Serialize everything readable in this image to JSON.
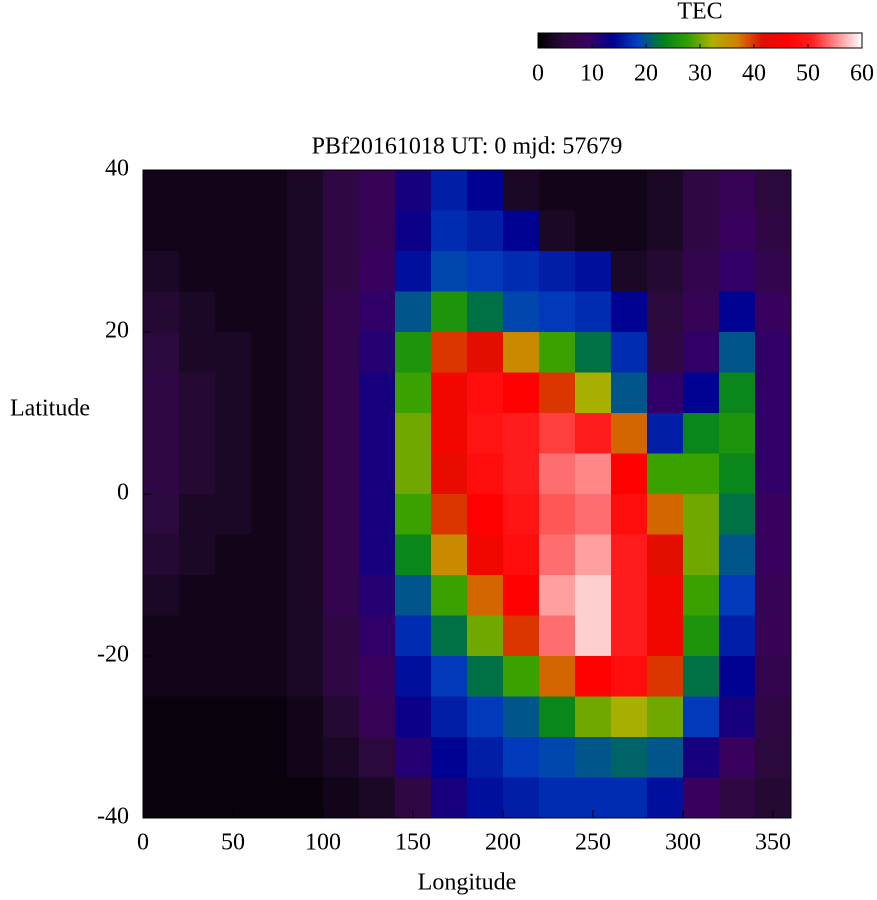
{
  "chart_data": {
    "type": "heatmap",
    "title": "PBf20161018  UT: 0  mjd: 57679",
    "xlabel": "Longitude",
    "ylabel": "Latitude",
    "x": [
      10,
      30,
      50,
      70,
      90,
      110,
      130,
      150,
      170,
      190,
      210,
      230,
      250,
      270,
      290,
      310,
      330,
      350
    ],
    "y": [
      37.5,
      32.5,
      27.5,
      22.5,
      17.5,
      12.5,
      7.5,
      2.5,
      -2.5,
      -7.5,
      -12.5,
      -17.5,
      -22.5,
      -27.5,
      -32.5,
      -37.5
    ],
    "values": [
      [
        2,
        2,
        2,
        2,
        3,
        6,
        8,
        12,
        16,
        14,
        3,
        2,
        2,
        2,
        3,
        6,
        8,
        5
      ],
      [
        2,
        2,
        2,
        2,
        3,
        6,
        8,
        13,
        17,
        16,
        14,
        3,
        2,
        2,
        3,
        6,
        9,
        6
      ],
      [
        3,
        2,
        2,
        2,
        3,
        6,
        9,
        15,
        19,
        18,
        17,
        16,
        15,
        3,
        4,
        7,
        10,
        7
      ],
      [
        4,
        3,
        2,
        2,
        3,
        7,
        10,
        20,
        26,
        22,
        19,
        18,
        17,
        14,
        5,
        8,
        14,
        9
      ],
      [
        5,
        3,
        3,
        2,
        3,
        7,
        11,
        26,
        40,
        42,
        36,
        28,
        22,
        17,
        6,
        10,
        20,
        10
      ],
      [
        6,
        4,
        3,
        2,
        3,
        7,
        12,
        28,
        44,
        48,
        46,
        40,
        32,
        20,
        10,
        14,
        24,
        10
      ],
      [
        6,
        4,
        3,
        2,
        3,
        7,
        12,
        30,
        44,
        49,
        50,
        52,
        50,
        38,
        16,
        24,
        26,
        10
      ],
      [
        6,
        4,
        3,
        2,
        3,
        7,
        12,
        30,
        43,
        48,
        50,
        54,
        55,
        46,
        28,
        28,
        24,
        10
      ],
      [
        5,
        3,
        3,
        2,
        3,
        7,
        12,
        28,
        40,
        46,
        49,
        53,
        54,
        48,
        38,
        30,
        22,
        9
      ],
      [
        4,
        3,
        2,
        2,
        3,
        7,
        12,
        24,
        36,
        44,
        48,
        54,
        56,
        50,
        42,
        30,
        20,
        9
      ],
      [
        3,
        2,
        2,
        2,
        3,
        7,
        11,
        20,
        28,
        38,
        46,
        56,
        58,
        50,
        44,
        28,
        18,
        8
      ],
      [
        2,
        2,
        2,
        2,
        3,
        6,
        10,
        17,
        22,
        30,
        40,
        54,
        58,
        50,
        44,
        26,
        16,
        8
      ],
      [
        2,
        2,
        2,
        2,
        3,
        6,
        9,
        15,
        18,
        22,
        28,
        38,
        46,
        48,
        40,
        22,
        14,
        7
      ],
      [
        1,
        1,
        1,
        1,
        2,
        4,
        8,
        13,
        16,
        18,
        20,
        24,
        30,
        32,
        30,
        18,
        12,
        6
      ],
      [
        1,
        1,
        1,
        1,
        2,
        3,
        5,
        11,
        14,
        16,
        18,
        19,
        20,
        21,
        20,
        12,
        9,
        5
      ],
      [
        1,
        1,
        1,
        1,
        1,
        2,
        3,
        6,
        12,
        15,
        16,
        17,
        17,
        17,
        15,
        9,
        6,
        4
      ]
    ],
    "xlim": [
      0,
      360
    ],
    "xticks": [
      0,
      50,
      100,
      150,
      200,
      250,
      300,
      350
    ],
    "ylim": [
      -40,
      40
    ],
    "yticks": [
      -40,
      -20,
      0,
      20,
      40
    ],
    "colorbar": {
      "label": "TEC",
      "lim": [
        0,
        60
      ],
      "ticks": [
        0,
        10,
        20,
        30,
        40,
        50,
        60
      ]
    },
    "colormap": [
      "#000000",
      "#2a0a3a",
      "#3a0060",
      "#000090",
      "#0040c0",
      "#008020",
      "#30a000",
      "#b0b000",
      "#d08000",
      "#e01000",
      "#ff0000",
      "#ff2020",
      "#ff9090",
      "#ffffff"
    ]
  }
}
